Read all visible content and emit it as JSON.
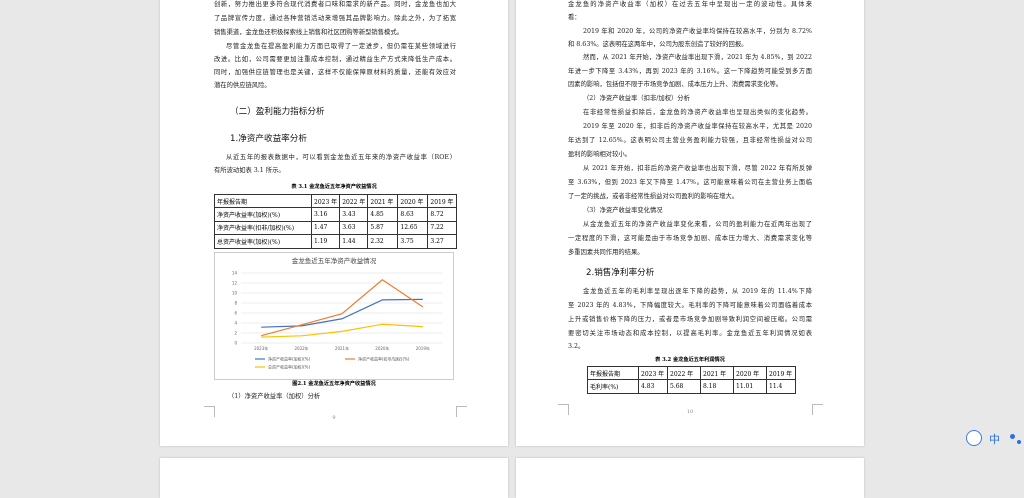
{
  "page_left": {
    "lines_top": [
      "创新，努力推出更多符合现代消费者口味和需求的新产品。同时，金龙鱼也加大",
      "了品牌宣传力度，通过各种营销活动来增强其品牌影响力。除此之外，为了拓宽",
      "销售渠道，金龙鱼还积极探索线上销售和社区团购等新型销售模式。"
    ],
    "para2": [
      "尽管金龙鱼在提高盈利能力方面已取得了一定进步，但仍需在某些领域进行",
      "改进。比如，公司需要更加注重成本控制，通过精益生产方式来降低生产成本。",
      "同时，加强供应链管理也是关键，这样不仅能保障原材料的质量，还能有效应对",
      "潜在的供应链风险。"
    ],
    "heading_2": "（二）盈利能力指标分析",
    "heading_3": "1.净资产收益率分析",
    "intro": [
      "从近五年的报表数据中，可以看到金龙鱼近五年来的净资产收益率（ROE）",
      "有所波动如表 3.1 所示。"
    ],
    "table_caption": "表 3.1  金龙鱼近五年净资产收益情况",
    "table": {
      "header": [
        "年报报告期",
        "2023 年",
        "2022 年",
        "2021 年",
        "2020 年",
        "2019 年"
      ],
      "rows": [
        [
          "净资产收益率(加权)(%)",
          3.16,
          3.43,
          4.85,
          8.63,
          8.72
        ],
        [
          "净资产收益率(扣非/加权)(%)",
          1.47,
          3.63,
          5.87,
          12.65,
          7.22
        ],
        [
          "总资产收益率(加权)(%)",
          1.19,
          1.44,
          2.32,
          3.75,
          3.27
        ]
      ]
    },
    "chart_data": {
      "type": "line",
      "title": "金龙鱼近五年净资产收益情况",
      "categories": [
        "2023年",
        "2022年",
        "2021年",
        "2020年",
        "2019年"
      ],
      "series": [
        {
          "name": "净资产收益率(加权)(%)",
          "color": "#4472c4",
          "values": [
            3.16,
            3.43,
            4.85,
            8.63,
            8.72
          ]
        },
        {
          "name": "净资产收益率(扣非/加权)(%)",
          "color": "#ed7d31",
          "values": [
            1.47,
            3.63,
            5.87,
            12.65,
            7.22
          ]
        },
        {
          "name": "总资产收益率(加权)(%)",
          "color": "#ffc000",
          "values": [
            1.19,
            1.44,
            2.32,
            3.75,
            3.27
          ]
        }
      ],
      "ylim": [
        0,
        14
      ],
      "yticks": [
        0,
        2,
        4,
        6,
        8,
        10,
        12,
        14
      ],
      "grid": true
    },
    "figure_caption": "图2.1 金龙鱼近五年净资产收益情况",
    "sub_heading": "（1）净资产收益率（加权）分析",
    "page_number": "9"
  },
  "page_right": {
    "lines": [
      "金龙鱼的净资产收益率（加权）在过去五年中呈现出一定的波动性。具体来",
      "看：",
      "2019 年和 2020 年，公司的净资产收益率均保持在较高水平，分别为 8.72%",
      "和 8.63%。这表明在这两年中，公司为股东创造了较好的回报。",
      "然而，从 2021 年开始，净资产收益率出现下滑，2021 年为 4.85%，到 2022",
      "年进一步下降至 3.43%，再到 2023 年的 3.16%。这一下降趋势可能受到多方面",
      "因素的影响，包括但不限于市场竞争加剧、成本压力上升、消费需求变化等。",
      "（2）净资产收益率（扣非/加权）分析",
      "在非经常性损益扣除后，金龙鱼的净资产收益率也呈现出类似的变化趋势。",
      "2019 年至 2020 年，扣非后的净资产收益率保持在较高水平，尤其是 2020",
      "年达到了 12.65%。这表明公司主营业务盈利能力较强，且非经常性损益对公司",
      "盈利的影响相对较小。",
      "从 2021 年开始，扣非后的净资产收益率也出现下滑，尽管 2022 年有所反弹",
      "至 3.63%，但到 2023 年又下降至 1.47%。这可能意味着公司在主营业务上面临",
      "了一定的挑战，或者非经常性损益对公司盈利的影响在增大。",
      "（3）净资产收益率变化情况",
      "从金龙鱼近五年的净资产收益率变化来看，公司的盈利能力在近两年出现了",
      "一定程度的下滑，这可能是由于市场竞争加剧、成本压力增大、消费需求变化等",
      "多重因素共同作用的结果。"
    ],
    "heading_3": "2.销售净利率分析",
    "lines2": [
      "金龙鱼近五年的毛利率呈现出逐年下降的趋势，从 2019 年的 11.4%下降",
      "至 2023 年的 4.83%，下降幅度较大。毛利率的下降可能意味着公司面临着成本",
      "上升或销售价格下降的压力，或者是市场竞争加剧导致利润空间被压缩。公司需",
      "要密切关注市场动态和成本控制，以提高毛利率。金龙鱼近五年利润情况如表",
      "3.2。"
    ],
    "table_caption": "表 3.2  金龙鱼近五年利润情况",
    "table": {
      "header": [
        "年报报告期",
        "2023 年",
        "2022 年",
        "2021 年",
        "2020 年",
        "2019 年"
      ],
      "rows": [
        [
          "毛利率(%)",
          4.83,
          5.68,
          8.18,
          11.01,
          11.4
        ]
      ]
    },
    "page_number": "10"
  },
  "toolbar": {
    "label": "中"
  }
}
